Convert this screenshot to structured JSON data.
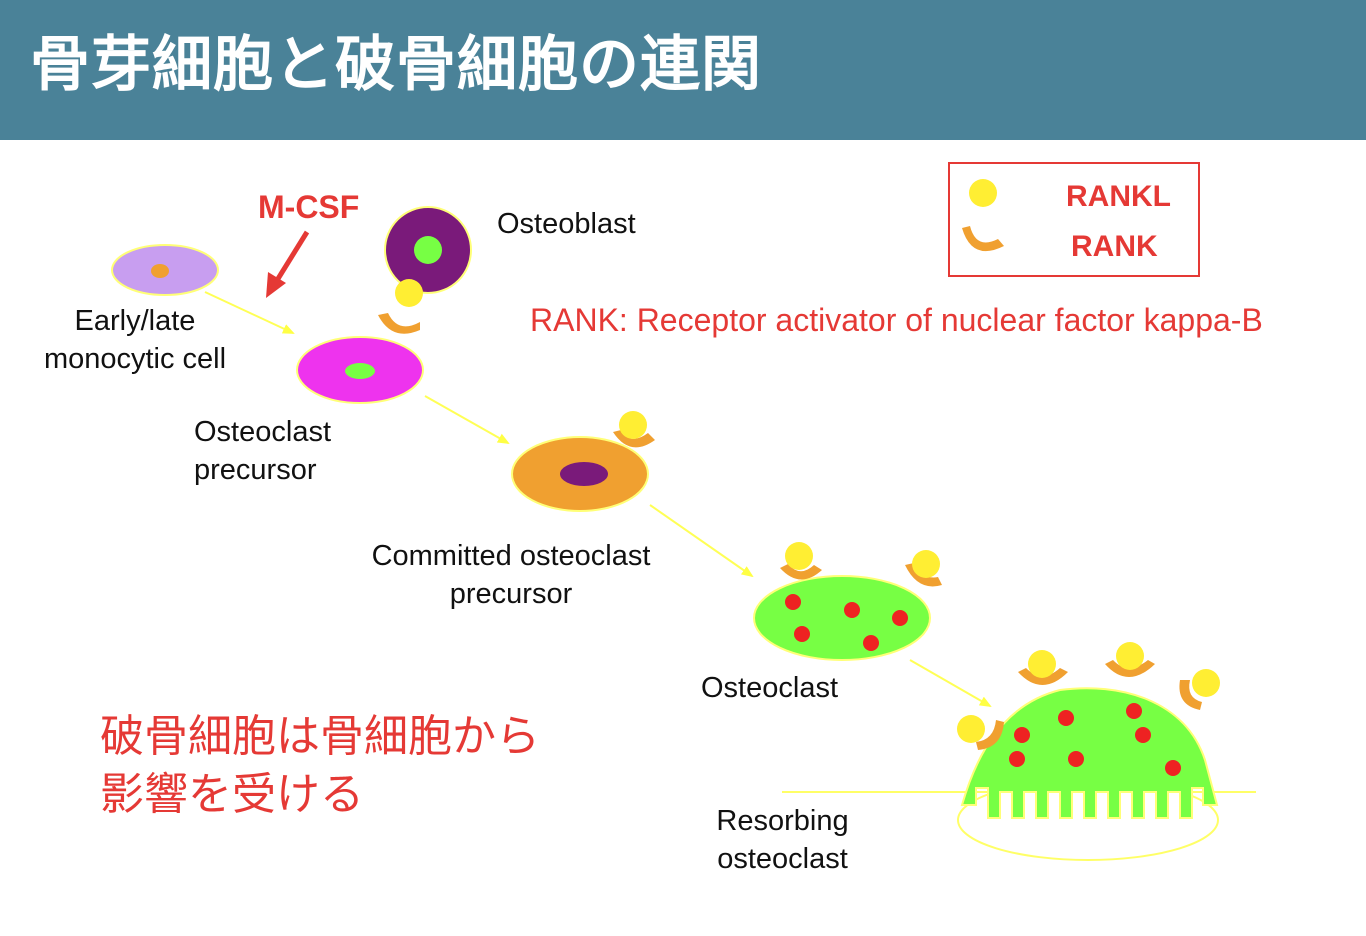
{
  "title": "骨芽細胞と破骨細胞の連関",
  "labels": {
    "mcsf": "M-CSF",
    "osteoblast": "Osteoblast",
    "early_cell_1": "Early/late",
    "early_cell_2": "monocytic cell",
    "precursor_1": "Osteoclast",
    "precursor_2": "precursor",
    "committed_1": "Committed osteoclast",
    "committed_2": "precursor",
    "osteoclast": "Osteoclast",
    "resorbing_1": "Resorbing",
    "resorbing_2": "osteoclast"
  },
  "legend": {
    "rankl": "RANKL",
    "rank": "RANK"
  },
  "rank_definition": "RANK: Receptor activator of nuclear factor kappa-B",
  "note": {
    "line1": "破骨細胞は骨細胞から",
    "line2": "影響を受ける"
  },
  "colors": {
    "header": "#4a8298",
    "accent_red": "#e53935",
    "rankl_yellow": "#ffee33",
    "rank_orange": "#f0a030",
    "arrow_yellow": "#ffff44",
    "early_cell": "#c89ef0",
    "precursor_cell": "#ee33ee",
    "committed_cell": "#f0a030",
    "osteoclast_green": "#77ff44",
    "osteoblast_purple": "#7a1a7a"
  }
}
